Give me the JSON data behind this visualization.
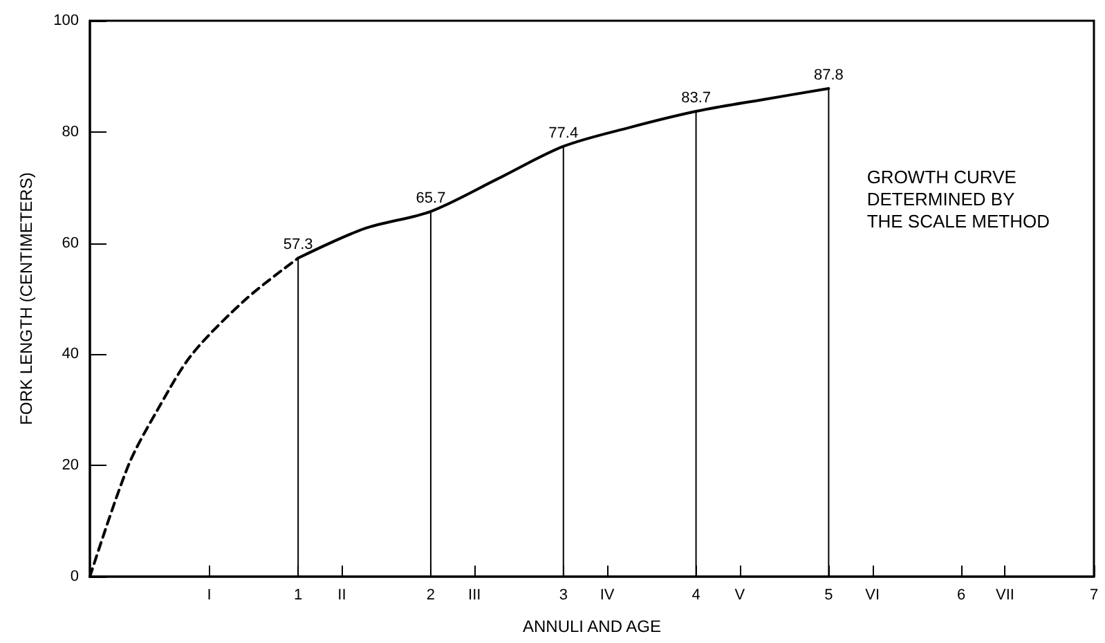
{
  "chart_data": {
    "type": "line",
    "xlabel": "ANNULI AND AGE",
    "ylabel": "FORK LENGTH (CENTIMETERS)",
    "xlim": [
      -0.57,
      7
    ],
    "xticks": [
      {
        "value": 0.33,
        "label": "I"
      },
      1,
      {
        "value": 1.33,
        "label": "II"
      },
      2,
      {
        "value": 2.33,
        "label": "III"
      },
      3,
      {
        "value": 3.33,
        "label": "IV"
      },
      4,
      {
        "value": 4.33,
        "label": "V"
      },
      5,
      {
        "value": 5.33,
        "label": "VI"
      },
      6,
      {
        "value": 6.33,
        "label": "VII"
      },
      7
    ],
    "ylim": [
      0,
      100
    ],
    "yticks": [
      0,
      20,
      40,
      60,
      80,
      100
    ],
    "grid": false,
    "marker": "none",
    "annotations": [
      "GROWTH CURVE\nDETERMINED BY\nTHE SCALE METHOD"
    ],
    "series": [
      {
        "type": "bar",
        "color": "#000000",
        "x": [
          1,
          2,
          3,
          4,
          5
        ],
        "values": [
          57.3,
          65.7,
          77.4,
          83.7,
          87.8
        ]
      },
      {
        "color": "#000000",
        "line_style": "dashed",
        "x": [
          -0.57,
          -0.28,
          -0.06,
          0.2,
          0.61,
          1
        ],
        "values": [
          0,
          20,
          30,
          40,
          50,
          57.3
        ]
      },
      {
        "color": "#000000",
        "line_style": "solid",
        "x": [
          1,
          1.5,
          2,
          2.5,
          3,
          3.5,
          4,
          4.5,
          5
        ],
        "values": [
          57.3,
          62.6,
          65.7,
          71.5,
          77.4,
          80.8,
          83.7,
          85.8,
          87.8
        ],
        "value_labels": [
          "57.3",
          null,
          "65.7",
          null,
          "77.4",
          null,
          "83.7",
          null,
          "87.8"
        ]
      }
    ]
  }
}
